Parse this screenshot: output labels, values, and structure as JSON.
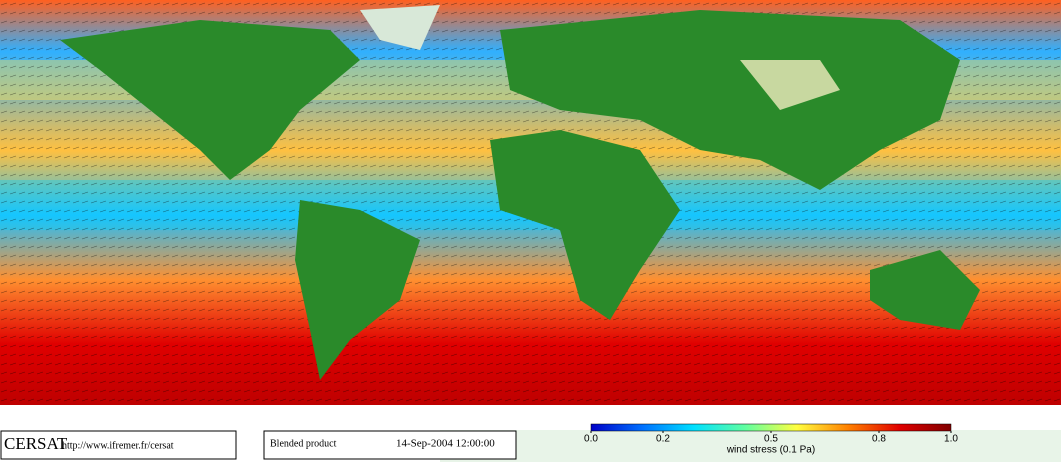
{
  "header": {
    "logo": "CERSAT",
    "url": "http://www.ifremer.fr/cersat",
    "product": "Blended product",
    "date": "14-Sep-2004 12:00:00"
  },
  "colorbar": {
    "label": "wind stress (0.1 Pa)",
    "lim": [
      0,
      1
    ],
    "ticks": [
      {
        "value": 0,
        "label": "0.0"
      },
      {
        "value": 0.2,
        "label": "0.2"
      },
      {
        "value": 0.5,
        "label": "0.5"
      },
      {
        "value": 0.8,
        "label": "0.8"
      },
      {
        "value": 1,
        "label": "1.0"
      }
    ],
    "colors": [
      "#0000c8",
      "#0070ff",
      "#00e0ff",
      "#60ffa0",
      "#ffff40",
      "#ff8000",
      "#e00000",
      "#800000"
    ]
  }
}
